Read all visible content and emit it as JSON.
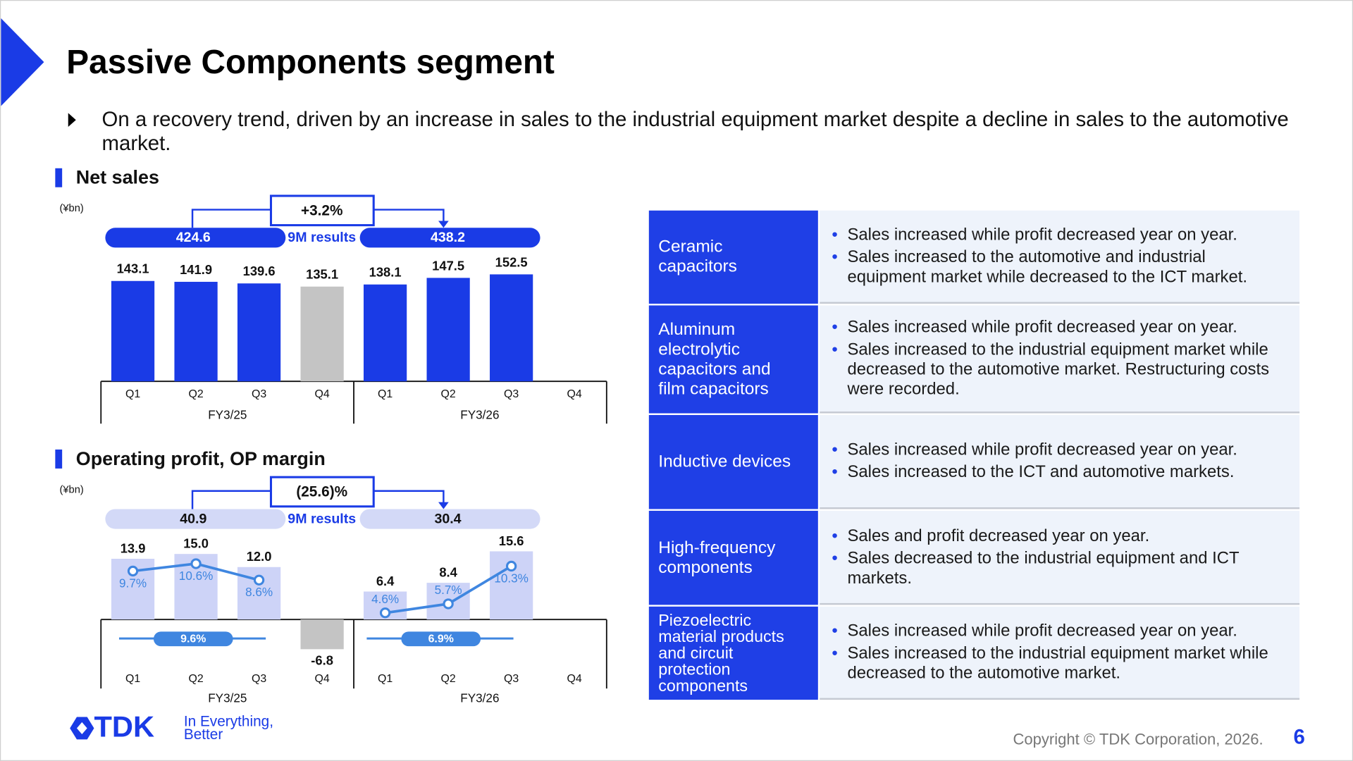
{
  "title": "Passive Components segment",
  "bullet": "On a recovery trend, driven by an increase in sales to the industrial equipment market despite a decline in sales to the automotive market.",
  "chart_data": [
    {
      "type": "bar",
      "title": "Net sales",
      "unit": "(¥bn)",
      "groups": [
        "FY3/25",
        "FY3/26"
      ],
      "categories": [
        "Q1",
        "Q2",
        "Q3",
        "Q4",
        "Q1",
        "Q2",
        "Q3",
        "Q4"
      ],
      "values": [
        143.1,
        141.9,
        139.6,
        135.1,
        138.1,
        147.5,
        152.5,
        null
      ],
      "colors": [
        "#1a3be6",
        "#1a3be6",
        "#1a3be6",
        "#c4c4c4",
        "#1a3be6",
        "#1a3be6",
        "#1a3be6",
        "#1a3be6"
      ],
      "change": "+3.2%",
      "nine_month": {
        "label": "9M results",
        "values": [
          424.6,
          438.2
        ],
        "color": "#1a3be6",
        "text_color": "#ffffff"
      }
    },
    {
      "type": "bar_line",
      "title": "Operating profit, OP margin",
      "unit": "(¥bn)",
      "groups": [
        "FY3/25",
        "FY3/26"
      ],
      "categories": [
        "Q1",
        "Q2",
        "Q3",
        "Q4",
        "Q1",
        "Q2",
        "Q3",
        "Q4"
      ],
      "values": [
        13.9,
        15.0,
        12.0,
        -6.8,
        6.4,
        8.4,
        15.6,
        null
      ],
      "value_labels": [
        "13.9",
        "15.0",
        "12.0",
        "-6.8",
        "6.4",
        "8.4",
        "15.6",
        null
      ],
      "colors": [
        "#cdd3f7",
        "#cdd3f7",
        "#cdd3f7",
        "#c4c4c4",
        "#cdd3f7",
        "#cdd3f7",
        "#cdd3f7",
        "#cdd3f7"
      ],
      "line": {
        "values": [
          9.7,
          10.6,
          8.6,
          null,
          4.6,
          5.7,
          10.3,
          null
        ],
        "value_labels": [
          "9.7%",
          "10.6%",
          "8.6%",
          null,
          "4.6%",
          "5.7%",
          "10.3%",
          null
        ],
        "color": "#3f86e0"
      },
      "change": "(25.6)%",
      "nine_month": {
        "label": "9M results",
        "values": [
          40.9,
          30.4
        ],
        "color": "#d3d9f7",
        "text_color": "#111111"
      },
      "nine_month_margin": {
        "values": [
          9.6,
          6.9
        ],
        "value_labels": [
          "9.6%",
          "6.9%"
        ],
        "color": "#3f86e0"
      }
    }
  ],
  "table": {
    "rows": [
      {
        "label": [
          "Ceramic",
          "capacitors"
        ],
        "bullets": [
          "Sales increased while profit decreased year on year.",
          "Sales increased to the automotive and industrial equipment market while decreased to the ICT market."
        ]
      },
      {
        "label": [
          "Aluminum",
          "electrolytic",
          "capacitors and",
          "film capacitors"
        ],
        "bullets": [
          "Sales increased while profit decreased year on year.",
          "Sales increased to the industrial equipment market while decreased to the automotive market. Restructuring costs were recorded."
        ]
      },
      {
        "label": [
          "Inductive devices"
        ],
        "bullets": [
          "Sales increased while profit decreased year on year.",
          "Sales increased to the ICT and automotive markets."
        ]
      },
      {
        "label": [
          "High-frequency",
          "components"
        ],
        "bullets": [
          "Sales and profit decreased year on year.",
          "Sales decreased to the industrial equipment and ICT markets."
        ]
      },
      {
        "label": [
          "Piezoelectric",
          "material products",
          "and circuit",
          "protection",
          "components"
        ],
        "bullets": [
          "Sales increased while profit decreased year on year.",
          "Sales increased to the industrial equipment market while decreased to the automotive market."
        ]
      }
    ]
  },
  "footer": {
    "logo": "TDK",
    "tagline": [
      "In Everything,",
      "Better"
    ],
    "copyright": "Copyright  © TDK Corporation, 2026.",
    "page_number": "6"
  }
}
